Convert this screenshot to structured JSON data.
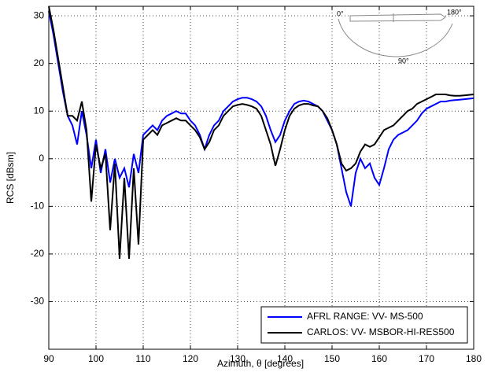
{
  "chart_data": {
    "type": "line",
    "x_label": "Azimuth, θ [degrees]",
    "y_label": "RCS [dBsm]",
    "x": [
      90,
      91,
      92,
      93,
      94,
      95,
      96,
      97,
      98,
      99,
      100,
      101,
      102,
      103,
      104,
      105,
      106,
      107,
      108,
      109,
      110,
      111,
      112,
      113,
      114,
      115,
      116,
      117,
      118,
      119,
      120,
      121,
      122,
      123,
      124,
      125,
      126,
      127,
      128,
      129,
      130,
      131,
      132,
      133,
      134,
      135,
      136,
      137,
      138,
      139,
      140,
      141,
      142,
      143,
      144,
      145,
      146,
      147,
      148,
      149,
      150,
      151,
      152,
      153,
      154,
      155,
      156,
      157,
      158,
      159,
      160,
      161,
      162,
      163,
      164,
      165,
      166,
      167,
      168,
      169,
      170,
      171,
      172,
      173,
      174,
      175,
      176,
      177,
      178,
      179,
      180
    ],
    "series": [
      {
        "name": "AFRL RANGE: VV- MS-500",
        "color": "#0000ff",
        "values": [
          31,
          26,
          20,
          14,
          9,
          7,
          3,
          10,
          5,
          -2,
          4,
          -3,
          2,
          -5,
          0,
          -4,
          -2,
          -6,
          1,
          -3,
          5,
          6,
          7,
          6,
          8,
          9,
          9.5,
          10,
          9.5,
          9.5,
          8,
          7,
          5,
          2,
          5,
          7,
          8,
          10,
          11,
          12,
          12.5,
          12.8,
          12.8,
          12.5,
          12,
          11,
          9,
          6,
          3.5,
          5,
          8,
          10,
          11.5,
          12,
          12.2,
          12,
          11.5,
          11,
          10,
          8,
          6,
          3,
          -2,
          -7,
          -10,
          -3,
          0,
          -2,
          -1,
          -4,
          -5.5,
          -2,
          2,
          4,
          5,
          5.5,
          6,
          7,
          8,
          9.5,
          10.5,
          11,
          11.5,
          12,
          12,
          12.2,
          12.3,
          12.4,
          12.5,
          12.6,
          12.7
        ]
      },
      {
        "name": "CARLOS: VV- MSBOR-HI-RES500",
        "color": "#000000",
        "values": [
          32,
          27,
          21,
          15,
          9,
          9,
          8,
          12,
          6,
          -9,
          3,
          -2,
          1,
          -15,
          -1,
          -21,
          -4,
          -21,
          -2,
          -18,
          4,
          5,
          6,
          5,
          7,
          7.5,
          8,
          8.5,
          8,
          8,
          7,
          6,
          4.5,
          2,
          3.5,
          6,
          7,
          9,
          10,
          11,
          11.3,
          11.5,
          11.3,
          11,
          10.5,
          9,
          6,
          3,
          -1.5,
          2,
          6,
          9,
          10.5,
          11.2,
          11.5,
          11.5,
          11.2,
          11,
          10,
          8.5,
          6,
          3,
          -1,
          -2.5,
          -2,
          -1,
          1.5,
          3,
          2.5,
          3,
          4.5,
          6,
          6.5,
          7,
          8,
          9,
          10,
          10.5,
          11.5,
          12,
          12.5,
          13,
          13.5,
          13.5,
          13.5,
          13.3,
          13.2,
          13.2,
          13.3,
          13.4,
          13.5
        ]
      }
    ],
    "xlim": [
      90,
      180
    ],
    "xticks": [
      90,
      100,
      110,
      120,
      130,
      140,
      150,
      160,
      170,
      180
    ],
    "ylim": [
      -40,
      32
    ],
    "yticks": [
      -30,
      -20,
      -10,
      0,
      10,
      20,
      30
    ],
    "grid": true,
    "legend": "lower right",
    "annotations": [
      "0°",
      "180°",
      "90°"
    ]
  }
}
